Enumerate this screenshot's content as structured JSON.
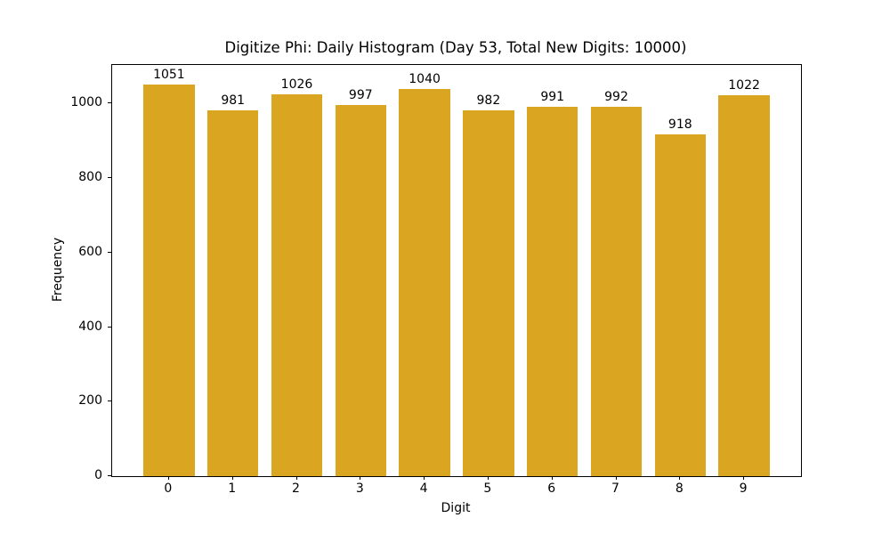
{
  "chart_data": {
    "type": "bar",
    "title": "Digitize Phi: Daily Histogram (Day 53, Total New Digits: 10000)",
    "xlabel": "Digit",
    "ylabel": "Frequency",
    "categories": [
      "0",
      "1",
      "2",
      "3",
      "4",
      "5",
      "6",
      "7",
      "8",
      "9"
    ],
    "values": [
      1051,
      981,
      1026,
      997,
      1040,
      982,
      991,
      992,
      918,
      1022
    ],
    "bar_value_labels": [
      "1051",
      "981",
      "1026",
      "997",
      "1040",
      "982",
      "991",
      "992",
      "918",
      "1022"
    ],
    "yticks": [
      0,
      200,
      400,
      600,
      800,
      1000
    ],
    "ylim": [
      0,
      1103.6
    ],
    "xlim": [
      -0.89,
      9.89
    ],
    "bar_width_fraction": 0.8,
    "bar_color": "#DAA520",
    "frame_color": "#000000",
    "background_color": "#ffffff",
    "grid": false,
    "legend": null
  }
}
